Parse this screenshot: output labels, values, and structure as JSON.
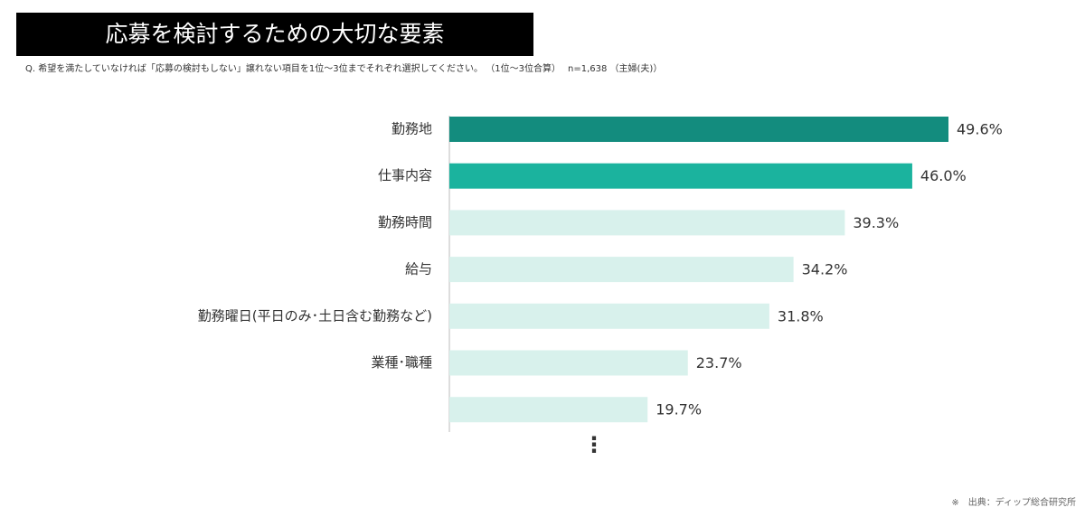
{
  "chart_data": {
    "type": "bar",
    "orientation": "horizontal",
    "title": "応募を検討するための大切な要素",
    "subtitle": "Q.  希望を満たしていなければ「応募の検討もしない」譲れない項目を1位～3位までそれぞれ選択してください。 （1位～3位合算）",
    "sample_note": "n=1,638 （主婦(夫)）",
    "source": "※　出典：ディップ総合研究所",
    "continuation": "⋮",
    "categories": [
      "勤務地",
      "仕事内容",
      "勤務時間",
      "給与",
      "勤務曜日(平日のみ･土日含む勤務など)",
      "業種･職種",
      null
    ],
    "values": [
      49.6,
      46.0,
      39.3,
      34.2,
      31.8,
      23.7,
      19.7
    ],
    "value_labels": [
      "49.6%",
      "46.0%",
      "39.3%",
      "34.2%",
      "31.8%",
      "23.7%",
      "19.7%"
    ],
    "colors": [
      "#138c7e",
      "#1bb39e",
      "#d8f1ec",
      "#d8f1ec",
      "#d8f1ec",
      "#d8f1ec",
      "#d8f1ec"
    ]
  }
}
